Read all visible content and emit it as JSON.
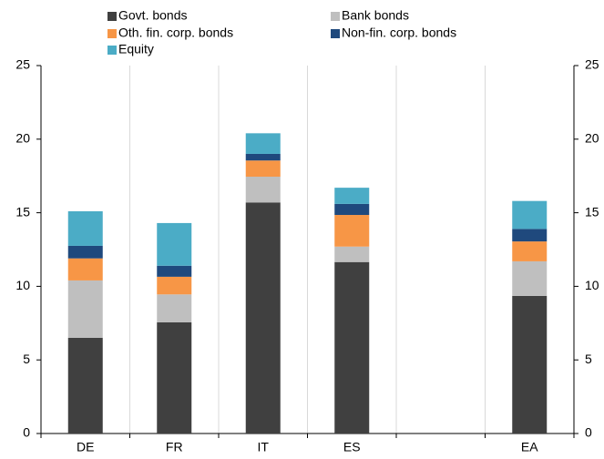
{
  "chart_data": {
    "type": "stacked-bar",
    "categories": [
      "DE",
      "FR",
      "IT",
      "ES",
      null,
      "EA"
    ],
    "series": [
      {
        "name": "Govt. bonds",
        "color": "#404040",
        "values": [
          6.5,
          7.55,
          15.7,
          11.65,
          null,
          9.35
        ]
      },
      {
        "name": "Bank bonds",
        "color": "#bfbfbf",
        "values": [
          3.9,
          1.9,
          1.75,
          1.05,
          null,
          2.35
        ]
      },
      {
        "name": "Oth. fin. corp. bonds",
        "color": "#f79646",
        "values": [
          1.5,
          1.2,
          1.1,
          2.15,
          null,
          1.35
        ]
      },
      {
        "name": "Non-fin. corp. bonds",
        "color": "#1f497d",
        "values": [
          0.85,
          0.75,
          0.45,
          0.75,
          null,
          0.85
        ]
      },
      {
        "name": "Equity",
        "color": "#4bacc6",
        "values": [
          2.35,
          2.9,
          1.4,
          1.1,
          null,
          1.9
        ]
      }
    ],
    "ylim": [
      0,
      25
    ],
    "yticks": [
      0,
      5,
      10,
      15,
      20,
      25
    ],
    "y2lim": [
      0,
      25
    ],
    "y2ticks": [
      0,
      5,
      10,
      15,
      20,
      25
    ],
    "legend": "top",
    "category_separators": true
  }
}
